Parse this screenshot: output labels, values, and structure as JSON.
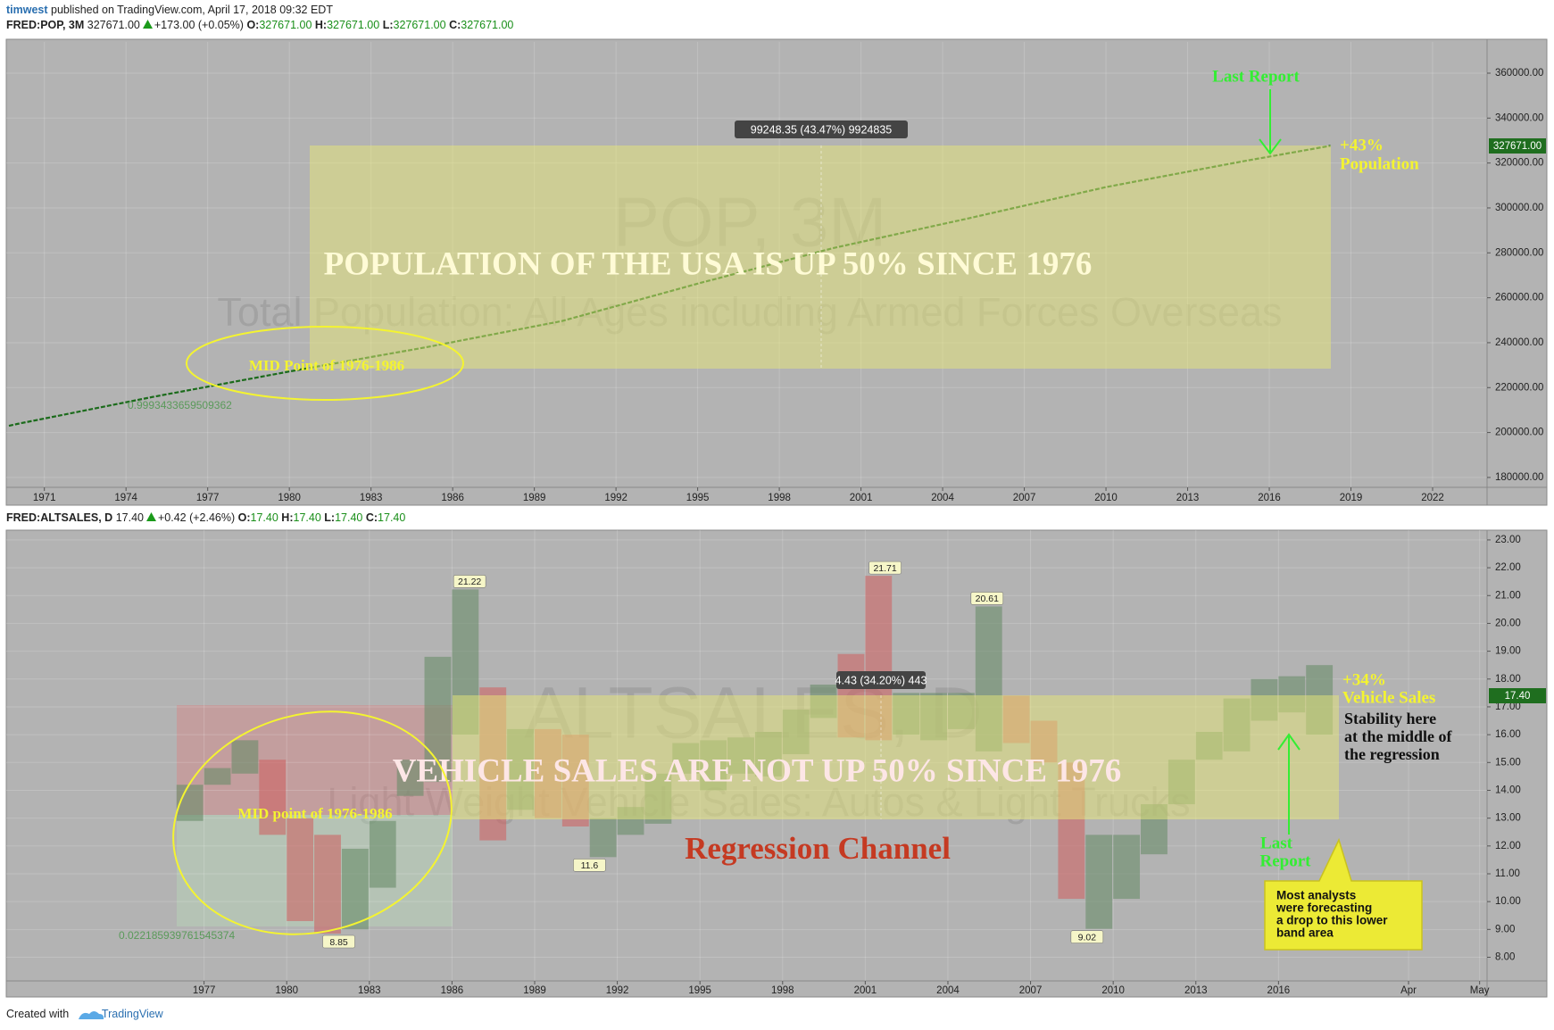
{
  "header": {
    "author": "timwest",
    "published": "published on TradingView.com, April 17, 2018 09:32 EDT"
  },
  "footer": {
    "created_with": "Created with",
    "brand": "TradingView"
  },
  "chart_data": [
    {
      "type": "line",
      "symbol": "FRED:POP, 3M",
      "last": "327671.00",
      "change": "+173.00 (+0.05%)",
      "ohlc": [
        {
          "label": "O:",
          "value": "327671.00"
        },
        {
          "label": "H:",
          "value": "327671.00"
        },
        {
          "label": "L:",
          "value": "327671.00"
        },
        {
          "label": "C:",
          "value": "327671.00"
        }
      ],
      "watermark_title": "POP, 3M",
      "watermark_subtitle": "Total Population: All Ages including Armed Forces Overseas",
      "annotations": {
        "headline": "POPULATION OF THE USA IS UP 50% SINCE 1976",
        "midpoint": "MID Point of 1976-1986",
        "coefficient": "0.9993433659509362",
        "measure": "99248.35 (43.47%) 9924835",
        "last_report": "Last Report",
        "change_pct": "+43%",
        "change_label": "Population"
      },
      "x": [
        1969.7,
        1970,
        1975,
        1980,
        1985,
        1990,
        1995,
        2000,
        2005,
        2010,
        2015,
        2018.25
      ],
      "values": [
        203000,
        203800,
        215900,
        227200,
        237900,
        249600,
        266300,
        282200,
        295500,
        309300,
        320700,
        327671
      ],
      "color": "#1b6b1b",
      "xlim": [
        1969.6,
        2024.0
      ],
      "ylim": [
        175600,
        373900
      ],
      "xticks": [
        1971,
        1974,
        1977,
        1980,
        1983,
        1986,
        1989,
        1992,
        1995,
        1998,
        2001,
        2004,
        2007,
        2010,
        2013,
        2016,
        2019,
        2022
      ],
      "yticks": [
        {
          "value": 180000,
          "label": "180000.00"
        },
        {
          "value": 200000,
          "label": "200000.00"
        },
        {
          "value": 220000,
          "label": "220000.00"
        },
        {
          "value": 240000,
          "label": "240000.00"
        },
        {
          "value": 260000,
          "label": "260000.00"
        },
        {
          "value": 280000,
          "label": "280000.00"
        },
        {
          "value": 300000,
          "label": "300000.00"
        },
        {
          "value": 320000,
          "label": "320000.00"
        },
        {
          "value": 340000,
          "label": "340000.00"
        },
        {
          "value": 360000,
          "label": "360000.00"
        }
      ],
      "grid": true
    },
    {
      "type": "candlestick",
      "symbol": "FRED:ALTSALES, D",
      "last": "17.40",
      "change": "+0.42 (+2.46%)",
      "ohlc": [
        {
          "label": "O:",
          "value": "17.40"
        },
        {
          "label": "H:",
          "value": "17.40"
        },
        {
          "label": "L:",
          "value": "17.40"
        },
        {
          "label": "C:",
          "value": "17.40"
        }
      ],
      "watermark_title": "ALTSALES, D",
      "watermark_subtitle": "Light Weight Vehicle Sales: Autos & Light Trucks",
      "annotations": {
        "headline": "VEHICLE SALES ARE NOT UP 50% SINCE 1976",
        "midpoint": "MID point of 1976-1986",
        "coefficient": "0.022185939761545374",
        "measure": "4.43 (34.20%) 443",
        "channel": "Regression Channel",
        "change_pct": "+34%",
        "change_label": "Vehicle Sales",
        "stability": [
          "Stability here",
          "at the middle of",
          "the regression"
        ],
        "last_report": [
          "Last",
          "Report"
        ],
        "forecast": [
          "Most analysts",
          "were forecasting",
          "a drop to this lower",
          "band area"
        ]
      },
      "x": [
        1976,
        1977,
        1978,
        1979,
        1980,
        1981,
        1982,
        1983,
        1984,
        1985,
        1986,
        1987,
        1988,
        1989,
        1990,
        1991,
        1992,
        1993,
        1994,
        1995,
        1996,
        1997,
        1998,
        1999,
        2000,
        2001,
        2002,
        2003,
        2004,
        2005,
        2006,
        2007,
        2008,
        2009,
        2010,
        2011,
        2012,
        2013,
        2014,
        2015,
        2016,
        2017
      ],
      "open": [
        12.9,
        14.2,
        14.6,
        15.1,
        13.0,
        12.4,
        9.0,
        10.5,
        13.8,
        14.3,
        16.0,
        17.7,
        13.3,
        16.2,
        16.0,
        11.6,
        12.4,
        12.8,
        14.6,
        14.0,
        14.6,
        14.5,
        15.3,
        16.6,
        18.9,
        21.71,
        16.0,
        15.8,
        16.2,
        15.4,
        17.4,
        16.5,
        15.0,
        9.02,
        10.1,
        11.7,
        13.5,
        15.1,
        15.4,
        16.5,
        16.8,
        16.0
      ],
      "close": [
        14.2,
        14.8,
        15.8,
        12.4,
        9.3,
        8.85,
        11.9,
        12.9,
        15.1,
        18.8,
        21.22,
        12.2,
        16.2,
        13.0,
        12.7,
        13.0,
        13.4,
        14.6,
        15.7,
        15.8,
        15.9,
        16.1,
        16.9,
        17.8,
        15.9,
        15.8,
        17.5,
        17.5,
        17.5,
        20.61,
        15.7,
        15.0,
        10.1,
        12.4,
        12.4,
        13.5,
        15.1,
        16.1,
        17.3,
        18.0,
        18.1,
        18.5
      ],
      "up_color": "rgba(105,140,105,0.6)",
      "down_color": "rgba(205,100,100,0.6)",
      "high_labels": [
        {
          "x": 1986.64,
          "value": 21.22
        },
        {
          "x": 2001.72,
          "value": 21.71
        },
        {
          "x": 2005.42,
          "value": 20.61
        }
      ],
      "low_labels": [
        {
          "x": 1981.89,
          "value": 8.85
        },
        {
          "x": 1990.99,
          "value": 11.6
        },
        {
          "x": 2009.05,
          "value": 9.02
        }
      ],
      "xlim": [
        1969.82,
        2023.57
      ],
      "ylim": [
        7.15,
        23.35
      ],
      "xticks": [
        1977,
        1980,
        1983,
        1986,
        1989,
        1992,
        1995,
        1998,
        2001,
        2004,
        2007,
        2010,
        2013,
        2016,
        {
          "value": 2020.72,
          "label": "Apr"
        },
        {
          "value": 2023.3,
          "label": "May"
        }
      ],
      "yticks": [
        {
          "value": 8,
          "label": "8.00"
        },
        {
          "value": 9,
          "label": "9.00"
        },
        {
          "value": 10,
          "label": "10.00"
        },
        {
          "value": 11,
          "label": "11.00"
        },
        {
          "value": 12,
          "label": "12.00"
        },
        {
          "value": 13,
          "label": "13.00"
        },
        {
          "value": 14,
          "label": "14.00"
        },
        {
          "value": 15,
          "label": "15.00"
        },
        {
          "value": 16,
          "label": "16.00"
        },
        {
          "value": 17,
          "label": "17.00"
        },
        {
          "value": 18,
          "label": "18.00"
        },
        {
          "value": 19,
          "label": "19.00"
        },
        {
          "value": 20,
          "label": "20.00"
        },
        {
          "value": 21,
          "label": "21.00"
        },
        {
          "value": 22,
          "label": "22.00"
        },
        {
          "value": 23,
          "label": "23.00"
        }
      ],
      "grid": true
    }
  ]
}
